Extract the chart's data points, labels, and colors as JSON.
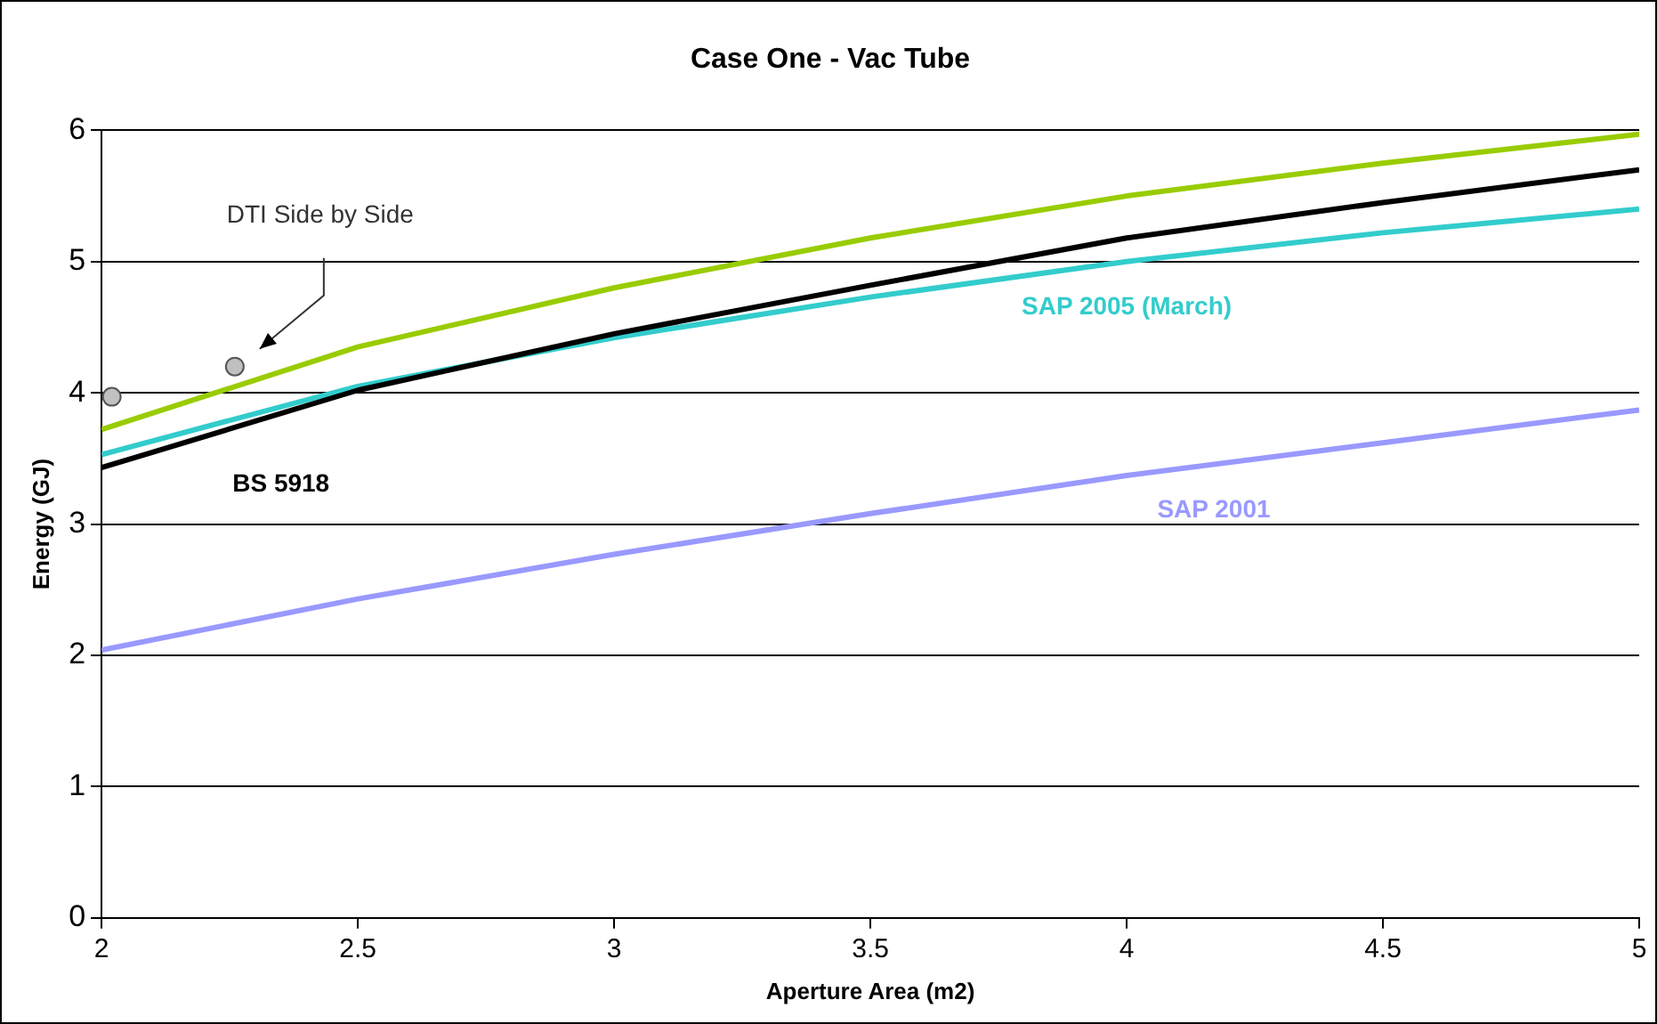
{
  "chart_data": {
    "type": "line",
    "title": "Case One - Vac Tube",
    "xlabel": "Aperture Area (m2)",
    "ylabel": "Energy (GJ)",
    "x": [
      2,
      2.5,
      3,
      3.5,
      4,
      4.5,
      5
    ],
    "series": [
      {
        "color": "#99cc00",
        "values": [
          3.72,
          4.35,
          4.8,
          5.18,
          5.5,
          5.75,
          5.97
        ]
      },
      {
        "name": "BS 5918",
        "color": "#000000",
        "values": [
          3.43,
          4.02,
          4.45,
          4.82,
          5.18,
          5.45,
          5.7
        ]
      },
      {
        "name": "SAP 2005 (March)",
        "color": "#33cccc",
        "values": [
          3.53,
          4.05,
          4.42,
          4.73,
          5.0,
          5.22,
          5.4
        ]
      },
      {
        "name": "SAP 2001",
        "color": "#9999ff",
        "values": [
          2.04,
          2.43,
          2.77,
          3.08,
          3.37,
          3.62,
          3.87
        ]
      },
      {
        "name": "DTI Side by Side",
        "type": "scatter",
        "marker": "circle",
        "color": "#c0c0c0",
        "x": [
          2.02,
          2.26
        ],
        "values": [
          3.97,
          4.2
        ]
      }
    ],
    "xlim": [
      2,
      5
    ],
    "xticks": [
      2,
      2.5,
      3,
      3.5,
      4,
      4.5,
      5
    ],
    "ylim": [
      0,
      6
    ],
    "yticks": [
      0,
      1,
      2,
      3,
      4,
      5,
      6
    ],
    "grid": "y",
    "legend": false,
    "marker": "none"
  }
}
